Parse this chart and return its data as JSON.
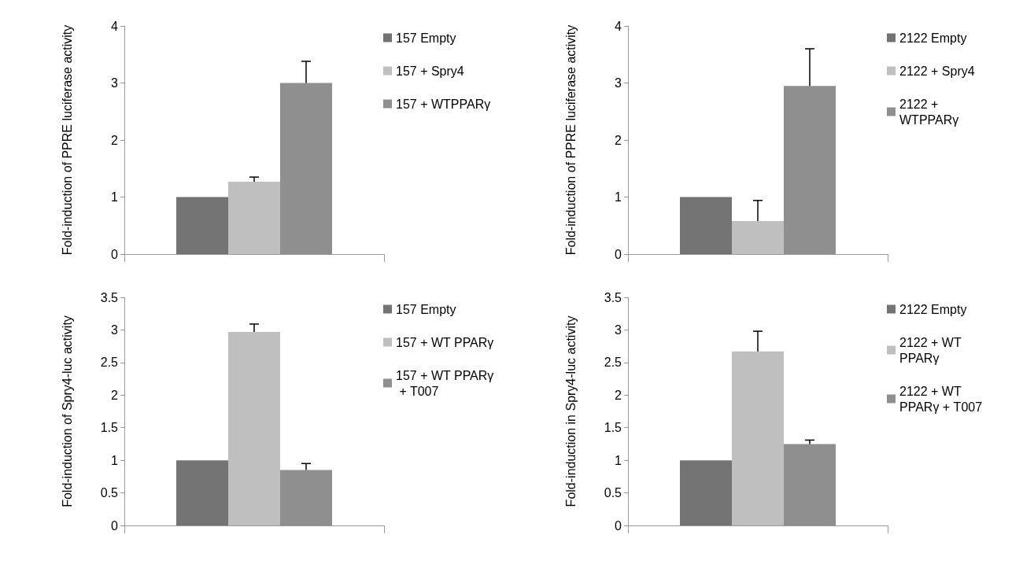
{
  "chart_data": [
    {
      "type": "bar",
      "ylabel": "Fold-induction of PPRE luciferase activity",
      "categories": [
        null
      ],
      "ylim": [
        0,
        4
      ],
      "yticks": [
        0,
        1,
        2,
        3,
        4
      ],
      "grid": false,
      "legend": "right",
      "series": [
        {
          "name": "157 Empty",
          "color": "#737373",
          "values": [
            1.0
          ],
          "errors": [
            null
          ]
        },
        {
          "name": "157 + Spry4",
          "color": "#bfbfbf",
          "values": [
            1.27
          ],
          "errors": [
            [
              1.27,
              1.35
            ]
          ]
        },
        {
          "name": "157 + WTPPARγ",
          "color": "#8f8f8f",
          "values": [
            3.0
          ],
          "errors": [
            [
              3.0,
              3.38
            ]
          ]
        }
      ]
    },
    {
      "type": "bar",
      "ylabel": "Fold-induction of PPRE luciferase activity",
      "categories": [
        null
      ],
      "ylim": [
        0,
        4
      ],
      "yticks": [
        0,
        1,
        2,
        3,
        4
      ],
      "grid": false,
      "legend": "right",
      "series": [
        {
          "name": "2122 Empty",
          "color": "#737373",
          "values": [
            1.0
          ],
          "errors": [
            null
          ]
        },
        {
          "name": "2122 + Spry4",
          "color": "#bfbfbf",
          "values": [
            0.58
          ],
          "errors": [
            [
              0.58,
              0.94
            ]
          ]
        },
        {
          "name": "2122 + WTPPARγ",
          "color": "#8f8f8f",
          "values": [
            2.95
          ],
          "errors": [
            [
              2.95,
              3.6
            ]
          ]
        }
      ]
    },
    {
      "type": "bar",
      "ylabel": "Fold-induction of Spry4-luc activity",
      "categories": [
        null
      ],
      "ylim": [
        0,
        3.5
      ],
      "yticks": [
        0,
        0.5,
        1,
        1.5,
        2,
        2.5,
        3,
        3.5
      ],
      "grid": false,
      "legend": "right",
      "series": [
        {
          "name": "157 Empty",
          "color": "#737373",
          "values": [
            1.0
          ],
          "errors": [
            null
          ]
        },
        {
          "name": "157 + WT PPARγ",
          "color": "#bfbfbf",
          "values": [
            2.97
          ],
          "errors": [
            [
              2.97,
              3.09
            ]
          ]
        },
        {
          "name": "157 + WT PPARγ + T007",
          "color": "#8f8f8f",
          "values": [
            0.85
          ],
          "errors": [
            [
              0.85,
              0.95
            ]
          ]
        }
      ]
    },
    {
      "type": "bar",
      "ylabel": "Fold-induction in Spry4-luc activity",
      "categories": [
        null
      ],
      "ylim": [
        0,
        3.5
      ],
      "yticks": [
        0,
        0.5,
        1,
        1.5,
        2,
        2.5,
        3,
        3.5
      ],
      "grid": false,
      "legend": "right",
      "series": [
        {
          "name": "2122 Empty",
          "color": "#737373",
          "values": [
            1.0
          ],
          "errors": [
            null
          ]
        },
        {
          "name": "2122 + WT PPARγ",
          "color": "#bfbfbf",
          "values": [
            2.67
          ],
          "errors": [
            [
              2.67,
              2.98
            ]
          ]
        },
        {
          "name": "2122 + WT PPARγ + T007",
          "color": "#8f8f8f",
          "values": [
            1.25
          ],
          "errors": [
            [
              1.25,
              1.31
            ]
          ]
        }
      ]
    }
  ]
}
